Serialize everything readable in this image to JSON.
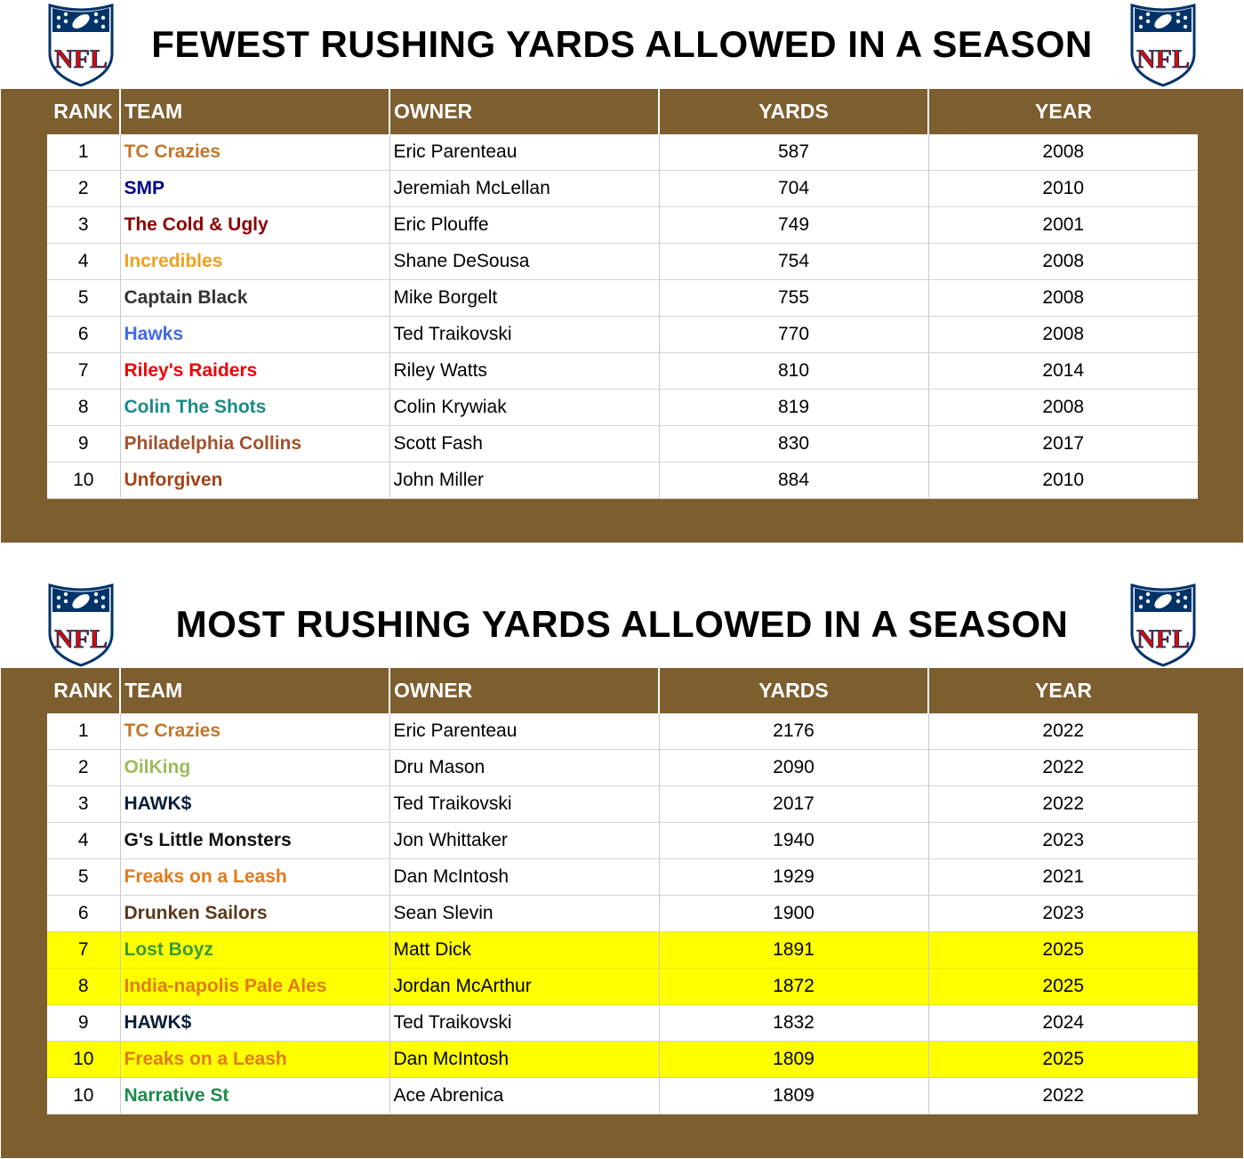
{
  "columns": {
    "rank": "RANK",
    "team": "TEAM",
    "owner": "OWNER",
    "yards": "YARDS",
    "year": "YEAR"
  },
  "logo_text": "NFL",
  "fewest": {
    "title": "FEWEST RUSHING YARDS ALLOWED IN A SEASON",
    "rows": [
      {
        "rank": "1",
        "team": "TC Crazies",
        "team_color": "#c0762a",
        "owner": "Eric Parenteau",
        "yards": "587",
        "year": "2008",
        "highlight": false
      },
      {
        "rank": "2",
        "team": "SMP",
        "team_color": "#00008b",
        "owner": "Jeremiah McLellan",
        "yards": "704",
        "year": "2010",
        "highlight": false
      },
      {
        "rank": "3",
        "team": "The Cold & Ugly",
        "team_color": "#8b0000",
        "owner": "Eric Plouffe",
        "yards": "749",
        "year": "2001",
        "highlight": false
      },
      {
        "rank": "4",
        "team": "Incredibles",
        "team_color": "#f0a020",
        "owner": "Shane DeSousa",
        "yards": "754",
        "year": "2008",
        "highlight": false
      },
      {
        "rank": "5",
        "team": "Captain Black",
        "team_color": "#333333",
        "owner": "Mike Borgelt",
        "yards": "755",
        "year": "2008",
        "highlight": false
      },
      {
        "rank": "6",
        "team": "Hawks",
        "team_color": "#4169e1",
        "owner": "Ted Traikovski",
        "yards": "770",
        "year": "2008",
        "highlight": false
      },
      {
        "rank": "7",
        "team": "Riley's Raiders",
        "team_color": "#ee0000",
        "owner": "Riley Watts",
        "yards": "810",
        "year": "2014",
        "highlight": false
      },
      {
        "rank": "8",
        "team": "Colin The Shots",
        "team_color": "#1a8a8a",
        "owner": "Colin Krywiak",
        "yards": "819",
        "year": "2008",
        "highlight": false
      },
      {
        "rank": "9",
        "team": "Philadelphia Collins",
        "team_color": "#a0522d",
        "owner": "Scott Fash",
        "yards": "830",
        "year": "2017",
        "highlight": false
      },
      {
        "rank": "10",
        "team": "Unforgiven",
        "team_color": "#a0441a",
        "owner": "John Miller",
        "yards": "884",
        "year": "2010",
        "highlight": false
      }
    ]
  },
  "most": {
    "title": "MOST RUSHING YARDS ALLOWED IN A SEASON",
    "rows": [
      {
        "rank": "1",
        "team": "TC Crazies",
        "team_color": "#c0762a",
        "owner": "Eric Parenteau",
        "yards": "2176",
        "year": "2022",
        "highlight": false
      },
      {
        "rank": "2",
        "team": "OilKing",
        "team_color": "#9bbb59",
        "owner": "Dru Mason",
        "yards": "2090",
        "year": "2022",
        "highlight": false
      },
      {
        "rank": "3",
        "team": "HAWK$",
        "team_color": "#0b1f3a",
        "owner": "Ted Traikovski",
        "yards": "2017",
        "year": "2022",
        "highlight": false
      },
      {
        "rank": "4",
        "team": "G's Little Monsters",
        "team_color": "#111111",
        "owner": "Jon Whittaker",
        "yards": "1940",
        "year": "2023",
        "highlight": false
      },
      {
        "rank": "5",
        "team": "Freaks on a Leash",
        "team_color": "#e07a1f",
        "owner": "Dan McIntosh",
        "yards": "1929",
        "year": "2021",
        "highlight": false
      },
      {
        "rank": "6",
        "team": "Drunken Sailors",
        "team_color": "#5a3a1a",
        "owner": "Sean Slevin",
        "yards": "1900",
        "year": "2023",
        "highlight": false
      },
      {
        "rank": "7",
        "team": "Lost Boyz",
        "team_color": "#3a9a3a",
        "owner": "Matt Dick",
        "yards": "1891",
        "year": "2025",
        "highlight": true
      },
      {
        "rank": "8",
        "team": "India-napolis Pale Ales",
        "team_color": "#e07a1f",
        "owner": "Jordan McArthur",
        "yards": "1872",
        "year": "2025",
        "highlight": true
      },
      {
        "rank": "9",
        "team": "HAWK$",
        "team_color": "#0b1f3a",
        "owner": "Ted Traikovski",
        "yards": "1832",
        "year": "2024",
        "highlight": false
      },
      {
        "rank": "10",
        "team": "Freaks on a Leash",
        "team_color": "#e07a1f",
        "owner": "Dan McIntosh",
        "yards": "1809",
        "year": "2025",
        "highlight": true
      },
      {
        "rank": "10",
        "team": "Narrative St",
        "team_color": "#1e8a4a",
        "owner": "Ace Abrenica",
        "yards": "1809",
        "year": "2022",
        "highlight": false
      }
    ]
  },
  "colors": {
    "panel_brown": "#7d5e2f",
    "highlight_yellow": "#ffff00",
    "logo_blue": "#013369",
    "logo_red": "#d50a0a"
  }
}
